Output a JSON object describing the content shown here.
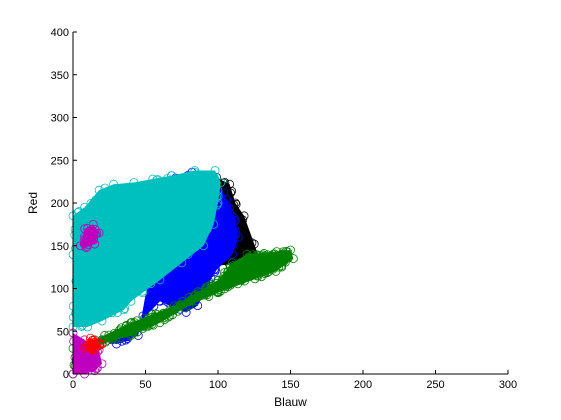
{
  "chart_data": {
    "type": "scatter",
    "xlabel": "Blauw",
    "ylabel": "Red",
    "xlim": [
      0,
      300
    ],
    "ylim": [
      0,
      400
    ],
    "x_ticks": [
      0,
      50,
      100,
      150,
      200,
      250,
      300
    ],
    "y_ticks": [
      0,
      50,
      100,
      150,
      200,
      250,
      300,
      350,
      400
    ],
    "x_tick_labels": [
      "0",
      "50",
      "100",
      "150",
      "200",
      "250",
      "300"
    ],
    "y_tick_labels": [
      "0",
      "50",
      "100",
      "150",
      "200",
      "250",
      "300",
      "350",
      "400"
    ],
    "grid": false,
    "marker": "circle-open",
    "series": [
      {
        "color": "#000000",
        "outline": [
          [
            88,
            140
          ],
          [
            99,
            230
          ],
          [
            108,
            222
          ],
          [
            112,
            200
          ],
          [
            118,
            185
          ],
          [
            125,
            152
          ],
          [
            128,
            138
          ],
          [
            120,
            125
          ],
          [
            108,
            128
          ],
          [
            95,
            126
          ]
        ]
      },
      {
        "color": "#0000ff",
        "outline": [
          [
            20,
            40
          ],
          [
            30,
            35
          ],
          [
            45,
            45
          ],
          [
            55,
            140
          ],
          [
            58,
            180
          ],
          [
            68,
            232
          ],
          [
            82,
            236
          ],
          [
            96,
            225
          ],
          [
            104,
            212
          ],
          [
            112,
            180
          ],
          [
            114,
            160
          ],
          [
            110,
            140
          ],
          [
            98,
            120
          ],
          [
            86,
            80
          ],
          [
            78,
            72
          ],
          [
            60,
            85
          ],
          [
            40,
            50
          ]
        ]
      },
      {
        "color": "#00bfbf",
        "outline": [
          [
            0,
            55
          ],
          [
            0,
            185
          ],
          [
            4,
            190
          ],
          [
            8,
            195
          ],
          [
            18,
            215
          ],
          [
            28,
            222
          ],
          [
            42,
            224
          ],
          [
            55,
            228
          ],
          [
            68,
            232
          ],
          [
            84,
            238
          ],
          [
            98,
            238
          ],
          [
            102,
            224
          ],
          [
            100,
            200
          ],
          [
            97,
            175
          ],
          [
            90,
            150
          ],
          [
            75,
            130
          ],
          [
            60,
            110
          ],
          [
            48,
            95
          ],
          [
            40,
            85
          ],
          [
            35,
            75
          ],
          [
            20,
            62
          ],
          [
            10,
            55
          ]
        ]
      },
      {
        "color": "#008000",
        "outline": [
          [
            0,
            0
          ],
          [
            0,
            30
          ],
          [
            15,
            40
          ],
          [
            40,
            60
          ],
          [
            70,
            80
          ],
          [
            100,
            110
          ],
          [
            110,
            130
          ],
          [
            120,
            140
          ],
          [
            150,
            145
          ],
          [
            152,
            135
          ],
          [
            140,
            120
          ],
          [
            100,
            95
          ],
          [
            80,
            80
          ],
          [
            60,
            60
          ],
          [
            40,
            45
          ],
          [
            20,
            35
          ],
          [
            10,
            20
          ],
          [
            5,
            5
          ]
        ]
      },
      {
        "color": "#bf00bf",
        "outline": [
          [
            0,
            0
          ],
          [
            0,
            48
          ],
          [
            8,
            40
          ],
          [
            18,
            28
          ],
          [
            20,
            12
          ],
          [
            15,
            4
          ],
          [
            8,
            0
          ]
        ]
      },
      {
        "color": "#bf00bf",
        "outline": [
          [
            5,
            150
          ],
          [
            8,
            170
          ],
          [
            14,
            175
          ],
          [
            18,
            165
          ],
          [
            15,
            152
          ],
          [
            9,
            148
          ]
        ]
      },
      {
        "color": "#ff0000",
        "outline": [
          [
            8,
            30
          ],
          [
            12,
            42
          ],
          [
            20,
            35
          ],
          [
            14,
            28
          ]
        ]
      }
    ]
  }
}
